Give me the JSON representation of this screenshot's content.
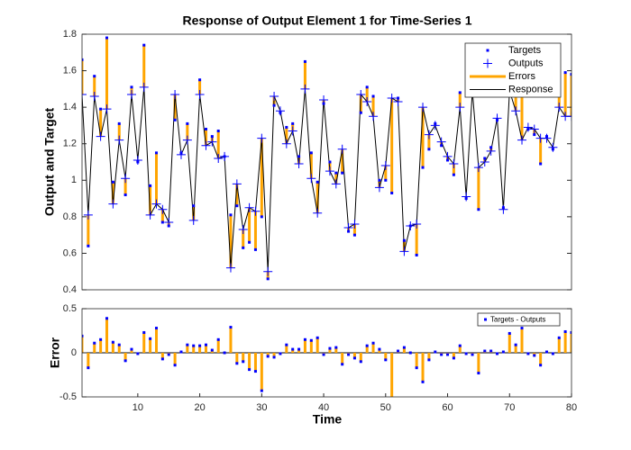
{
  "chart_data": [
    {
      "type": "line",
      "title": "Response of Output Element 1 for Time-Series 1",
      "ylabel": "Output and Target",
      "xlim": [
        1,
        80
      ],
      "ylim": [
        0.4,
        1.8
      ],
      "yticks": [
        0.4,
        0.6,
        0.8,
        1,
        1.2,
        1.4,
        1.6,
        1.8
      ],
      "series": [
        {
          "name": "Targets",
          "color": "#0000ff",
          "values": [
            1.66,
            0.64,
            1.57,
            1.39,
            1.78,
            0.99,
            1.31,
            0.92,
            1.51,
            1.1,
            1.74,
            0.97,
            1.15,
            0.77,
            0.75,
            1.33,
            1.15,
            1.31,
            0.86,
            1.55,
            1.28,
            1.24,
            1.27,
            1.13,
            0.81,
            0.86,
            0.63,
            0.66,
            0.62,
            0.8,
            0.46,
            1.41,
            1.37,
            1.29,
            1.31,
            1.13,
            1.65,
            1.15,
            0.99,
            1.42,
            1.1,
            1.04,
            1.04,
            0.72,
            0.7,
            1.37,
            1.51,
            1.46,
            1.0,
            1.0,
            0.93,
            1.45,
            0.67,
            0.75,
            0.59,
            1.07,
            1.17,
            1.31,
            1.19,
            1.11,
            1.03,
            1.48,
            0.9,
            1.47,
            0.84,
            1.12,
            1.18,
            1.33,
            0.85,
            1.71,
            1.47,
            1.5,
            1.28,
            1.25,
            1.09,
            1.24,
            1.17,
            1.57,
            1.59,
            1.58
          ]
        },
        {
          "name": "Outputs",
          "color": "#0000ff",
          "values": [
            1.47,
            0.81,
            1.46,
            1.24,
            1.39,
            0.87,
            1.22,
            1.01,
            1.47,
            1.11,
            1.51,
            0.81,
            0.87,
            0.84,
            0.77,
            1.47,
            1.14,
            1.22,
            0.78,
            1.47,
            1.19,
            1.21,
            1.12,
            1.13,
            0.52,
            0.98,
            0.73,
            0.85,
            0.83,
            1.23,
            0.5,
            1.46,
            1.38,
            1.2,
            1.27,
            1.09,
            1.5,
            1.01,
            0.82,
            1.44,
            1.05,
            0.98,
            1.17,
            0.74,
            0.76,
            1.47,
            1.43,
            1.35,
            0.96,
            1.08,
            1.45,
            1.43,
            0.61,
            0.75,
            0.76,
            1.4,
            1.25,
            1.3,
            1.21,
            1.13,
            1.09,
            1.4,
            0.91,
            1.49,
            1.07,
            1.1,
            1.16,
            1.34,
            0.84,
            1.49,
            1.38,
            1.22,
            1.29,
            1.28,
            1.23,
            1.23,
            1.18,
            1.4,
            1.35,
            1.35
          ]
        },
        {
          "name": "Errors",
          "color": "#ffa500"
        },
        {
          "name": "Response",
          "color": "#000000"
        }
      ]
    },
    {
      "type": "stem",
      "xlabel": "Time",
      "ylabel": "Error",
      "xlim": [
        1,
        80
      ],
      "xticks": [
        10,
        20,
        30,
        40,
        50,
        60,
        70,
        80
      ],
      "ylim": [
        -0.5,
        0.5
      ],
      "yticks": [
        -0.5,
        0,
        0.5
      ],
      "series": [
        {
          "name": "Targets - Outputs",
          "color": "#0000ff",
          "stem_color": "#ffa500",
          "values": [
            0.19,
            -0.17,
            0.11,
            0.15,
            0.39,
            0.12,
            0.09,
            -0.09,
            0.04,
            -0.01,
            0.23,
            0.16,
            0.28,
            -0.07,
            -0.02,
            -0.14,
            0.01,
            0.09,
            0.08,
            0.08,
            0.09,
            0.03,
            0.15,
            0,
            0.29,
            -0.12,
            -0.1,
            -0.19,
            -0.21,
            -0.43,
            -0.04,
            -0.05,
            -0.01,
            0.09,
            0.04,
            0.04,
            0.15,
            0.14,
            0.17,
            -0.02,
            0.05,
            0.06,
            -0.13,
            -0.02,
            -0.06,
            -0.1,
            0.08,
            0.11,
            0.04,
            -0.08,
            -0.52,
            0.02,
            0.06,
            0,
            -0.17,
            -0.33,
            -0.08,
            0.01,
            -0.02,
            -0.02,
            -0.06,
            0.08,
            -0.01,
            -0.02,
            -0.23,
            0.02,
            0.02,
            -0.01,
            0.01,
            0.22,
            0.09,
            0.28,
            -0.01,
            -0.03,
            -0.14,
            0.01,
            -0.01,
            0.17,
            0.24,
            0.23
          ]
        }
      ]
    }
  ]
}
